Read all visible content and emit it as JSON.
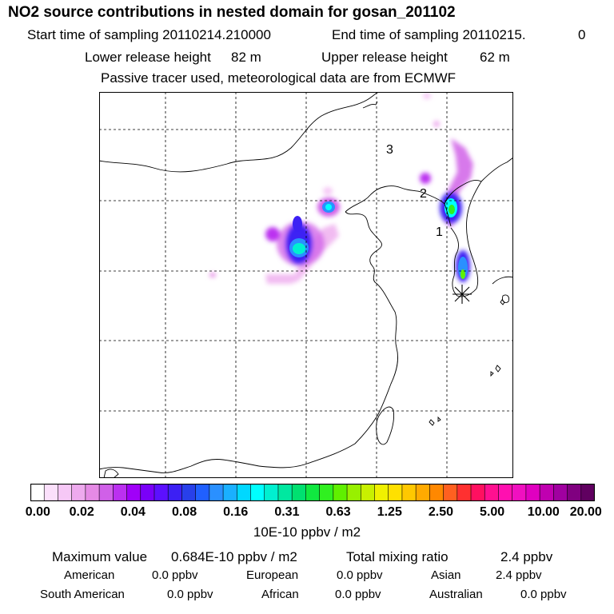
{
  "header": {
    "title": "NO2 source contributions in nested domain for gosan_201102",
    "start_label": "Start time of sampling 20110214.210000",
    "end_label": "End time of sampling 20110215.",
    "end_value": "0",
    "lower_label": "Lower release height",
    "lower_value": "82 m",
    "upper_label": "Upper release height",
    "upper_value": "62 m",
    "tracer_note": "Passive tracer used, meteorological data are from ECMWF"
  },
  "map": {
    "markers": [
      {
        "label": "3"
      },
      {
        "label": "2"
      },
      {
        "label": "1"
      }
    ],
    "receptor_icon": "asterisk-star"
  },
  "colorbar": {
    "ticks": [
      "0.00",
      "0.02",
      "0.04",
      "0.08",
      "0.16",
      "0.31",
      "0.63",
      "1.25",
      "2.50",
      "5.00",
      "10.00",
      "20.00"
    ],
    "unit": "10E-10 ppbv / m2",
    "colors": [
      "#ffffff",
      "#fbe0fb",
      "#f6c8f6",
      "#eeaaee",
      "#e58ae5",
      "#d060e8",
      "#bb30f0",
      "#a000f8",
      "#7a00f8",
      "#5c10ff",
      "#3c20f4",
      "#2840ea",
      "#2060ff",
      "#2a90ff",
      "#1ab0ff",
      "#00d8ff",
      "#00ffff",
      "#00f0d0",
      "#00e8a0",
      "#00e070",
      "#10e840",
      "#30f020",
      "#60f000",
      "#98f000",
      "#c8f000",
      "#f0f000",
      "#ffe000",
      "#ffc800",
      "#ffaa00",
      "#ff8800",
      "#ff6020",
      "#ff3030",
      "#ff1060",
      "#ff1090",
      "#ff10b0",
      "#f010c0",
      "#e000c0",
      "#c000b0",
      "#a000a0",
      "#800080",
      "#600060"
    ]
  },
  "footer": {
    "max_label": "Maximum value",
    "max_value": "0.684E-10 ppbv / m2",
    "total_label": "Total mixing ratio",
    "total_value": "2.4 ppbv",
    "regions": [
      {
        "name": "American",
        "value": "0.0 ppbv"
      },
      {
        "name": "European",
        "value": "0.0 ppbv"
      },
      {
        "name": "Asian",
        "value": "2.4 ppbv"
      },
      {
        "name": "South American",
        "value": "0.0 ppbv"
      },
      {
        "name": "African",
        "value": "0.0 ppbv"
      },
      {
        "name": "Australian",
        "value": "0.0 ppbv"
      }
    ]
  }
}
